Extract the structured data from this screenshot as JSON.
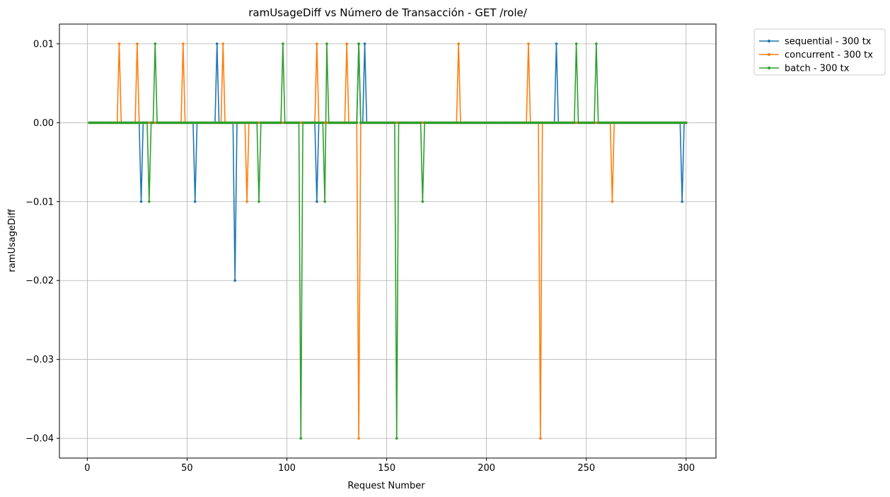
{
  "chart_data": {
    "type": "line",
    "title": "ramUsageDiff vs Número de Transacción - GET /role/",
    "xlabel": "Request Number",
    "ylabel": "ramUsageDiff",
    "xlim": [
      -13.95,
      314.95
    ],
    "ylim": [
      -0.0425,
      0.0125
    ],
    "xticks": [
      0,
      50,
      100,
      150,
      200,
      250,
      300
    ],
    "xtick_labels": [
      "0",
      "50",
      "100",
      "150",
      "200",
      "250",
      "300"
    ],
    "yticks": [
      0.01,
      0.0,
      -0.01,
      -0.02,
      -0.03,
      -0.04
    ],
    "ytick_labels": [
      "0.01",
      "0.00",
      "−0.01",
      "−0.02",
      "−0.03",
      "−0.04"
    ],
    "grid": true,
    "legend_position": "outside-top-right",
    "n_points": 300,
    "series": [
      {
        "name": "sequential - 300 tx",
        "color": "#1f77b4",
        "baseline": 0,
        "nonzero": [
          [
            27,
            -0.01
          ],
          [
            54,
            -0.01
          ],
          [
            65,
            0.01
          ],
          [
            74,
            -0.02
          ],
          [
            115,
            -0.01
          ],
          [
            136,
            0.01
          ],
          [
            139,
            0.01
          ],
          [
            235,
            0.01
          ],
          [
            298,
            -0.01
          ]
        ]
      },
      {
        "name": "concurrent - 300 tx",
        "color": "#ff7f0e",
        "baseline": 0,
        "nonzero": [
          [
            16,
            0.01
          ],
          [
            25,
            0.01
          ],
          [
            48,
            0.01
          ],
          [
            68,
            0.01
          ],
          [
            80,
            -0.01
          ],
          [
            115,
            0.01
          ],
          [
            130,
            0.01
          ],
          [
            136,
            -0.04
          ],
          [
            186,
            0.01
          ],
          [
            221,
            0.01
          ],
          [
            227,
            -0.04
          ],
          [
            263,
            -0.01
          ]
        ]
      },
      {
        "name": "batch - 300 tx",
        "color": "#2ca02c",
        "baseline": 0,
        "nonzero": [
          [
            31,
            -0.01
          ],
          [
            34,
            0.01
          ],
          [
            86,
            -0.01
          ],
          [
            98,
            0.01
          ],
          [
            107,
            -0.04
          ],
          [
            119,
            -0.01
          ],
          [
            120,
            0.01
          ],
          [
            136,
            0.01
          ],
          [
            155,
            -0.04
          ],
          [
            168,
            -0.01
          ],
          [
            245,
            0.01
          ],
          [
            255,
            0.01
          ]
        ]
      }
    ]
  }
}
